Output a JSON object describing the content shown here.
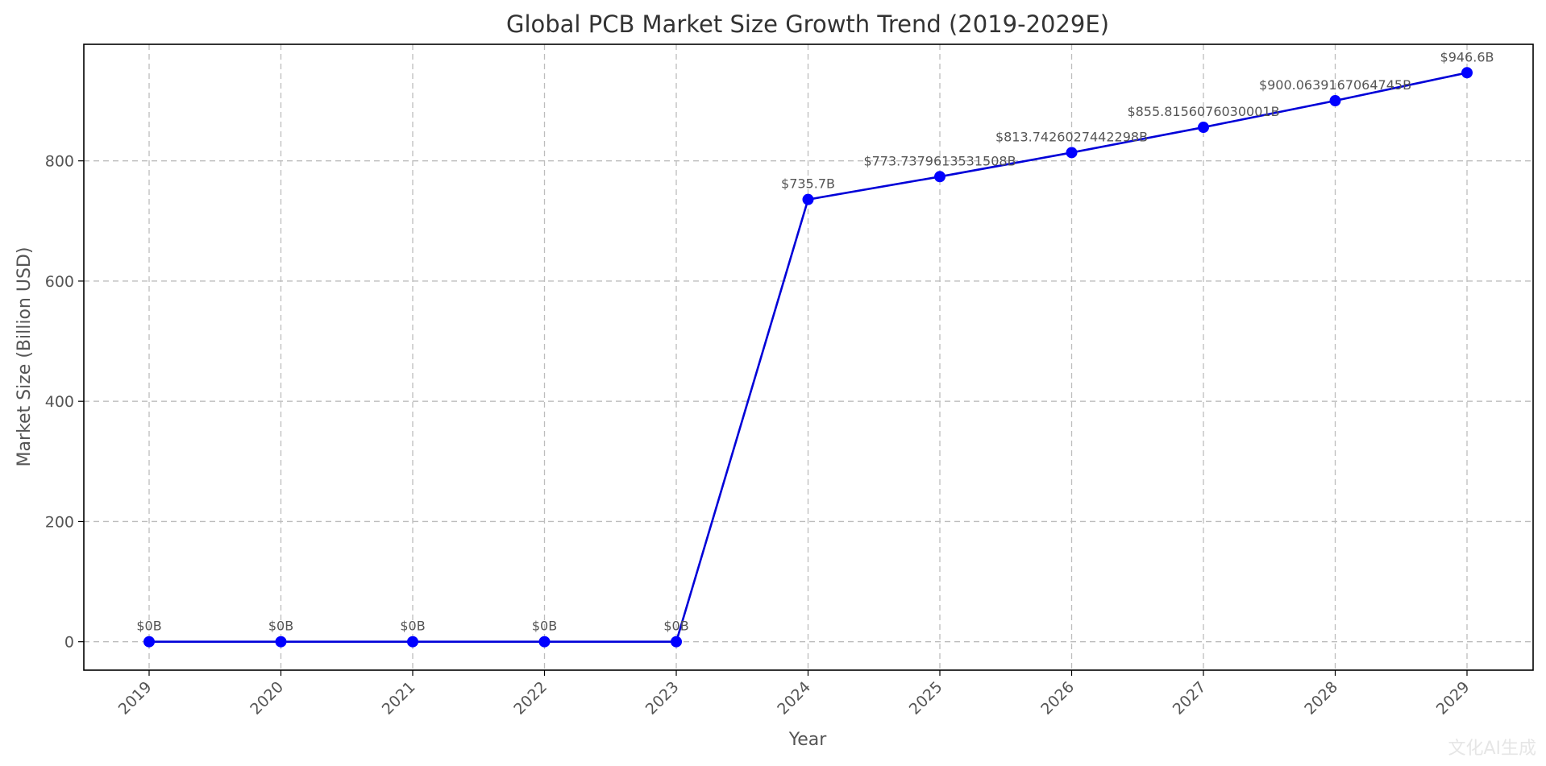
{
  "chart_data": {
    "type": "line",
    "title": "Global PCB Market Size Growth Trend (2019-2029E)",
    "xlabel": "Year",
    "ylabel": "Market Size (Billion USD)",
    "categories": [
      "2019",
      "2020",
      "2021",
      "2022",
      "2023",
      "2024",
      "2025",
      "2026",
      "2027",
      "2028",
      "2029"
    ],
    "series": [
      {
        "values": [
          0,
          0,
          0,
          0,
          0,
          735.7,
          773.7379613531508,
          813.7426027442298,
          855.8156076030001,
          900.0639167064745,
          946.6
        ],
        "color": "#0000ff"
      }
    ],
    "data_labels": [
      "$0B",
      "$0B",
      "$0B",
      "$0B",
      "$0B",
      "$735.7B",
      "$773.7379613531508B",
      "$813.7426027442298B",
      "$855.8156076030001B",
      "$900.0639167064745B",
      "$946.6B"
    ],
    "y_ticks": [
      0,
      200,
      400,
      600,
      800
    ],
    "ylim": [
      -47.3,
      993.9
    ],
    "grid": true,
    "watermark": "文化AI生成"
  }
}
